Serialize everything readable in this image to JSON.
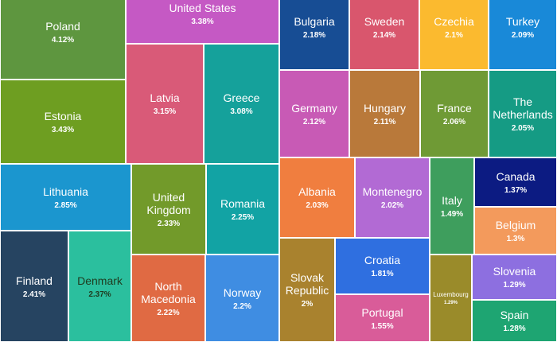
{
  "chart_data": {
    "type": "treemap",
    "items": [
      {
        "name": "Poland",
        "value": "4.12%",
        "color": "#5e963f"
      },
      {
        "name": "United States",
        "value": "3.38%",
        "color": "#c559c4"
      },
      {
        "name": "Bulgaria",
        "value": "2.18%",
        "color": "#174d94"
      },
      {
        "name": "Sweden",
        "value": "2.14%",
        "color": "#d9566d"
      },
      {
        "name": "Czechia",
        "value": "2.1%",
        "color": "#fbba2f"
      },
      {
        "name": "Turkey",
        "value": "2.09%",
        "color": "#1989d8"
      },
      {
        "name": "Estonia",
        "value": "3.43%",
        "color": "#6e9e21"
      },
      {
        "name": "Latvia",
        "value": "3.15%",
        "color": "#d95a78"
      },
      {
        "name": "Greece",
        "value": "3.08%",
        "color": "#15a19b"
      },
      {
        "name": "Germany",
        "value": "2.12%",
        "color": "#c85ab5"
      },
      {
        "name": "Hungary",
        "value": "2.11%",
        "color": "#b9793a"
      },
      {
        "name": "France",
        "value": "2.06%",
        "color": "#6f9a35"
      },
      {
        "name": "The Netherlands",
        "value": "2.05%",
        "color": "#159b84"
      },
      {
        "name": "Lithuania",
        "value": "2.85%",
        "color": "#1b96cf"
      },
      {
        "name": "United Kingdom",
        "value": "2.33%",
        "color": "#729a2a"
      },
      {
        "name": "Romania",
        "value": "2.25%",
        "color": "#12a3a4"
      },
      {
        "name": "Albania",
        "value": "2.03%",
        "color": "#f07e3f"
      },
      {
        "name": "Montenegro",
        "value": "2.02%",
        "color": "#b26ad4"
      },
      {
        "name": "Italy",
        "value": "1.49%",
        "color": "#3e9e5d"
      },
      {
        "name": "Canada",
        "value": "1.37%",
        "color": "#0c1b82"
      },
      {
        "name": "Belgium",
        "value": "1.3%",
        "color": "#f39a5c"
      },
      {
        "name": "Finland",
        "value": "2.41%",
        "color": "#264461"
      },
      {
        "name": "Denmark",
        "value": "2.37%",
        "color": "#2bbf9e"
      },
      {
        "name": "North Macedonia",
        "value": "2.22%",
        "color": "#e06a43"
      },
      {
        "name": "Norway",
        "value": "2.2%",
        "color": "#3f8de2"
      },
      {
        "name": "Slovak Republic",
        "value": "2%",
        "color": "#a9822e"
      },
      {
        "name": "Croatia",
        "value": "1.81%",
        "color": "#2f6fe0"
      },
      {
        "name": "Luxembourg",
        "value": "1.29%",
        "color": "#9a8b2a"
      },
      {
        "name": "Slovenia",
        "value": "1.29%",
        "color": "#8d6fe0"
      },
      {
        "name": "Portugal",
        "value": "1.55%",
        "color": "#d95c99"
      },
      {
        "name": "Spain",
        "value": "1.28%",
        "color": "#1ea572"
      }
    ]
  }
}
